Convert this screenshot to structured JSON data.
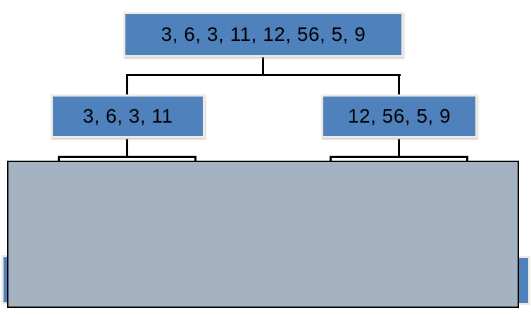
{
  "tree": {
    "root": {
      "label": "3, 6, 3, 11, 12, 56, 5, 9"
    },
    "left": {
      "label": "3, 6, 3, 11"
    },
    "right": {
      "label": "12, 56, 5, 9"
    }
  },
  "overlay": {
    "covered_leaf_slivers": 2
  },
  "colors": {
    "node_fill": "#4F81BD",
    "node_border": "#EEECE1",
    "node_text": "#000000",
    "connector": "#000000",
    "cover_fill": "#A4B2C1",
    "cover_border": "#000000",
    "background": "#FFFFFF"
  }
}
